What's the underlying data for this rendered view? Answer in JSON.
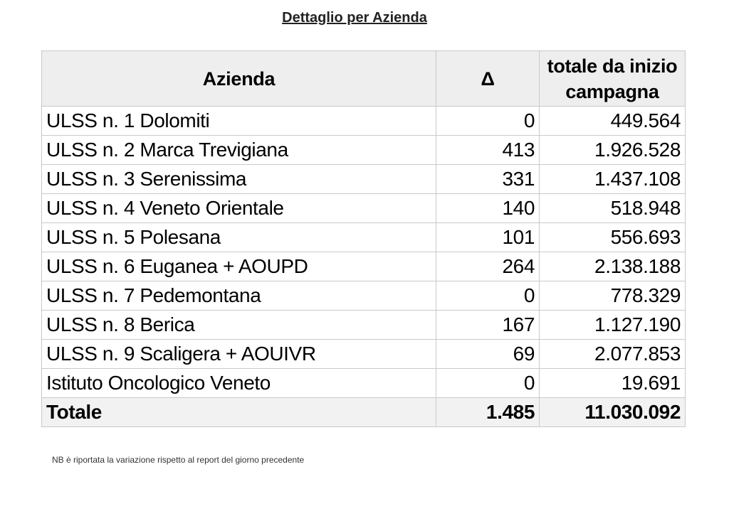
{
  "title": "Dettaglio per Azienda",
  "table": {
    "headers": {
      "azienda": "Azienda",
      "delta": "Δ",
      "totale_line1": "totale da inizio",
      "totale_line2": "campagna"
    },
    "rows": [
      {
        "azienda": "ULSS n. 1 Dolomiti",
        "delta": "0",
        "totale": "449.564"
      },
      {
        "azienda": "ULSS n. 2 Marca Trevigiana",
        "delta": "413",
        "totale": "1.926.528"
      },
      {
        "azienda": "ULSS n. 3 Serenissima",
        "delta": "331",
        "totale": "1.437.108"
      },
      {
        "azienda": "ULSS n. 4 Veneto Orientale",
        "delta": "140",
        "totale": "518.948"
      },
      {
        "azienda": "ULSS n. 5 Polesana",
        "delta": "101",
        "totale": "556.693"
      },
      {
        "azienda": "ULSS n. 6 Euganea + AOUPD",
        "delta": "264",
        "totale": "2.138.188"
      },
      {
        "azienda": "ULSS n. 7 Pedemontana",
        "delta": "0",
        "totale": "778.329"
      },
      {
        "azienda": "ULSS n. 8 Berica",
        "delta": "167",
        "totale": "1.127.190"
      },
      {
        "azienda": "ULSS n. 9 Scaligera + AOUIVR",
        "delta": "69",
        "totale": "2.077.853"
      },
      {
        "azienda": "Istituto Oncologico Veneto",
        "delta": "0",
        "totale": "19.691"
      }
    ],
    "total": {
      "azienda": "Totale",
      "delta": "1.485",
      "totale": "11.030.092"
    }
  },
  "note": "NB è riportata la variazione rispetto al report del giorno precedente"
}
